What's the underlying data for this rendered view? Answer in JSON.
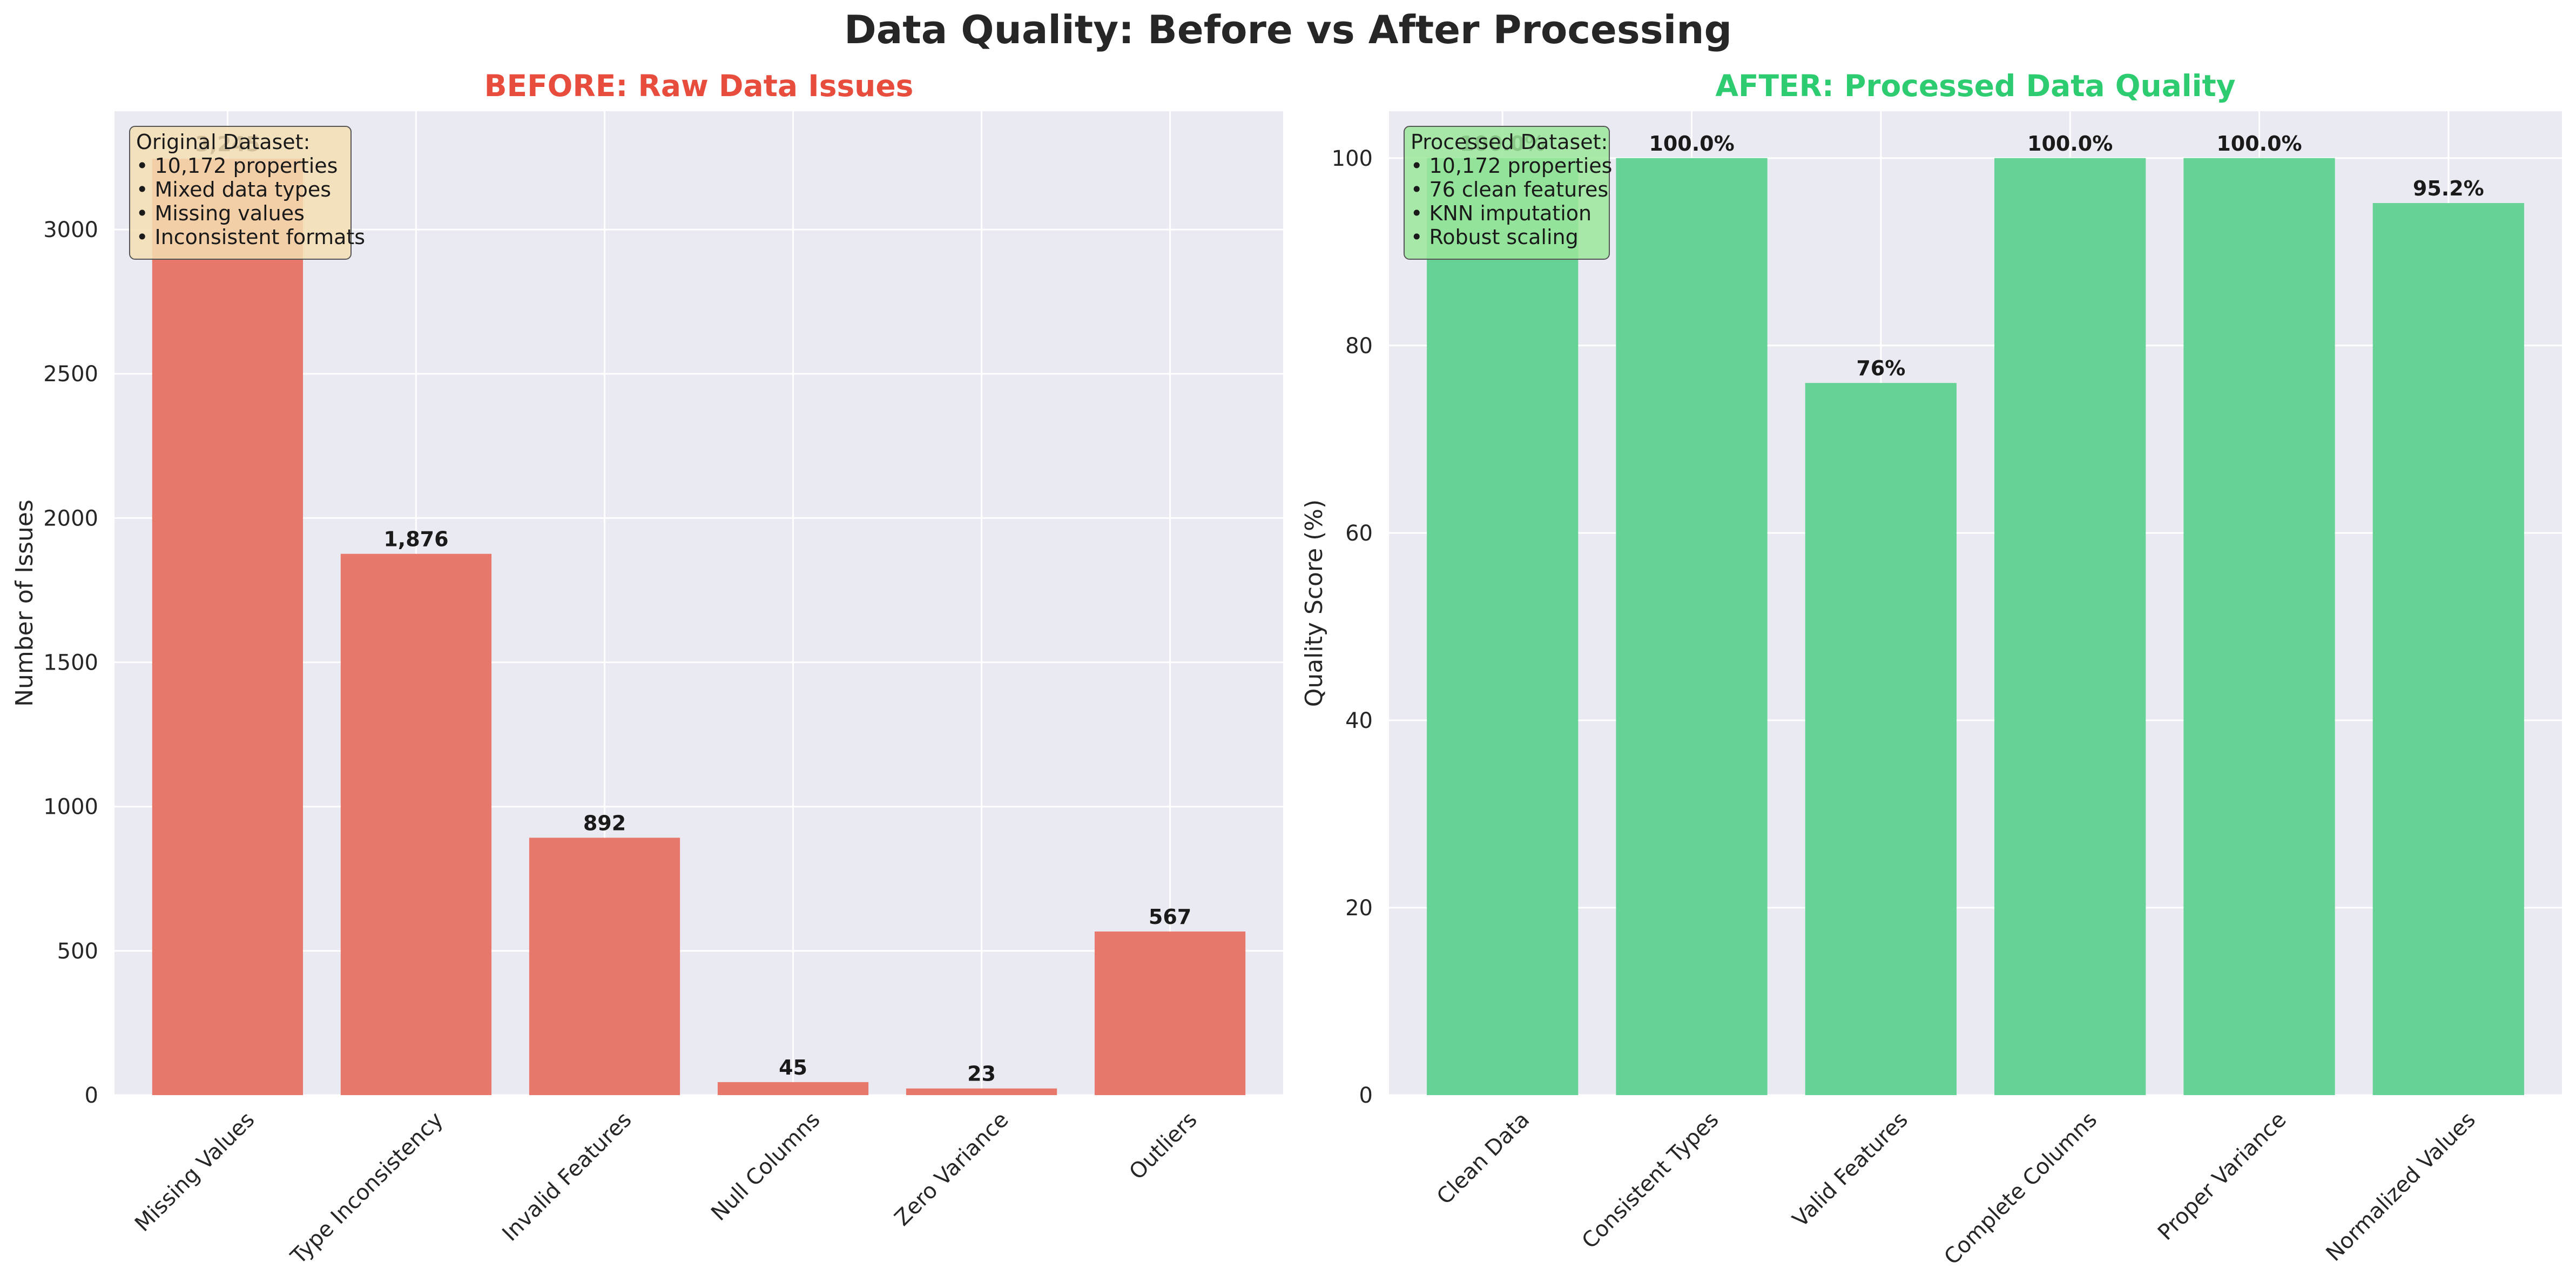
{
  "figure": {
    "title": "Data Quality: Before vs After Processing"
  },
  "chart_data": [
    {
      "type": "bar",
      "title": "BEFORE: Raw Data Issues",
      "title_color": "#e74c3c",
      "bar_color": "#e8776c",
      "xlabel": "",
      "ylabel": "Number of Issues",
      "categories": [
        "Missing Values",
        "Type Inconsistency",
        "Invalid Features",
        "Null Columns",
        "Zero Variance",
        "Outliers"
      ],
      "values": [
        3245,
        1876,
        892,
        45,
        23,
        567
      ],
      "value_labels": [
        "3,245",
        "1,876",
        "892",
        "45",
        "23",
        "567"
      ],
      "ylim": [
        0,
        3410
      ],
      "yticks": [
        0,
        500,
        1000,
        1500,
        2000,
        2500,
        3000
      ],
      "grid": true,
      "annotation": {
        "lines": [
          "Original Dataset:",
          "• 10,172 properties",
          "• Mixed data types",
          "• Missing values",
          "• Inconsistent formats"
        ],
        "bg": "#f5deb3",
        "position": "top-left"
      }
    },
    {
      "type": "bar",
      "title": "AFTER: Processed Data Quality",
      "title_color": "#2ecc71",
      "bar_color": "#66d295",
      "xlabel": "",
      "ylabel": "Quality Score (%)",
      "categories": [
        "Clean Data",
        "Consistent Types",
        "Valid Features",
        "Complete Columns",
        "Proper Variance",
        "Normalized Values"
      ],
      "values": [
        100.0,
        100.0,
        76,
        100.0,
        100.0,
        95.2
      ],
      "value_labels": [
        "100.0%",
        "100.0%",
        "76%",
        "100.0%",
        "100.0%",
        "95.2%"
      ],
      "ylim": [
        0,
        105
      ],
      "yticks": [
        0,
        20,
        40,
        60,
        80,
        100
      ],
      "grid": true,
      "annotation": {
        "lines": [
          "Processed Dataset:",
          "• 10,172 properties",
          "• 76 clean features",
          "• KNN imputation",
          "• Robust scaling"
        ],
        "bg": "#9be79b",
        "position": "top-left"
      }
    }
  ]
}
